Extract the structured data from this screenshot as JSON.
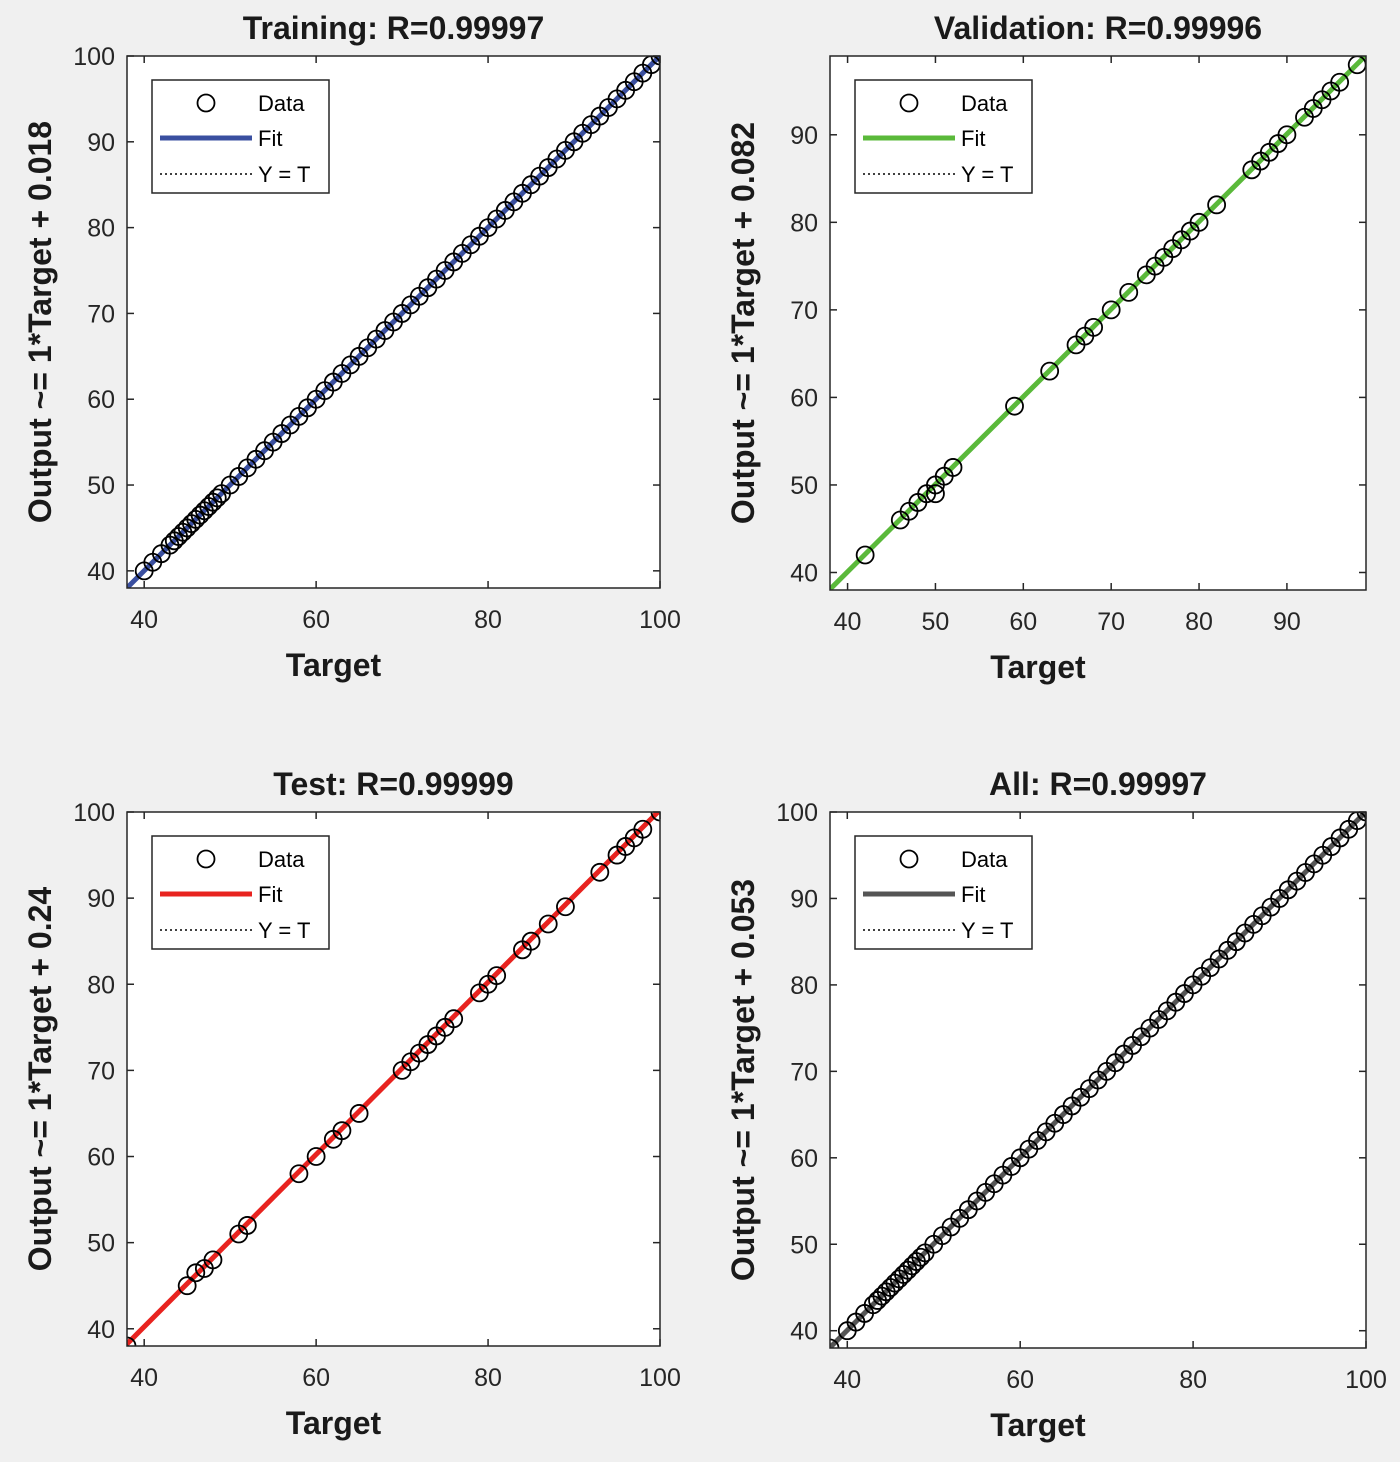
{
  "chart_data": [
    {
      "type": "scatter",
      "title": "Training: R=0.99997",
      "xlabel": "Target",
      "ylabel": "Output ~= 1*Target + 0.018",
      "xlim": [
        38,
        100
      ],
      "ylim": [
        38,
        100
      ],
      "xticks": [
        40,
        60,
        80,
        100
      ],
      "yticks": [
        40,
        50,
        60,
        70,
        80,
        90,
        100
      ],
      "fit": {
        "slope": 1,
        "intercept": 0.018,
        "color": "#3a4fa0"
      },
      "legend": {
        "position": "top-left",
        "entries": [
          "Data",
          "Fit",
          "Y = T"
        ]
      },
      "grid": false,
      "series": [
        {
          "name": "Data",
          "marker": "open-circle",
          "x": [
            40,
            41,
            42,
            43,
            43.5,
            44,
            44.5,
            45,
            45.5,
            46,
            46.5,
            47,
            47.5,
            48,
            48.5,
            49,
            50,
            51,
            52,
            53,
            54,
            55,
            56,
            57,
            58,
            59,
            60,
            61,
            62,
            63,
            64,
            65,
            66,
            67,
            68,
            69,
            70,
            71,
            72,
            73,
            74,
            75,
            76,
            77,
            78,
            79,
            80,
            81,
            82,
            83,
            84,
            85,
            86,
            87,
            88,
            89,
            90,
            91,
            92,
            93,
            94,
            95,
            96,
            97,
            98,
            99,
            100
          ],
          "y": [
            40,
            41,
            42,
            43,
            43.5,
            44,
            44.5,
            45,
            45.5,
            46,
            46.5,
            47,
            47.5,
            48,
            48.5,
            49,
            50,
            51,
            52,
            53,
            54,
            55,
            56,
            57,
            58,
            59,
            60,
            61,
            62,
            63,
            64,
            65,
            66,
            67,
            68,
            69,
            70,
            71,
            72,
            73,
            74,
            75,
            76,
            77,
            78,
            79,
            80,
            81,
            82,
            83,
            84,
            85,
            86,
            87,
            88,
            89,
            90,
            91,
            92,
            93,
            94,
            95,
            96,
            97,
            98,
            99,
            100
          ]
        },
        {
          "name": "Fit"
        },
        {
          "name": "Y = T"
        }
      ]
    },
    {
      "type": "scatter",
      "title": "Validation: R=0.99996",
      "xlabel": "Target",
      "ylabel": "Output ~= 1*Target + 0.082",
      "xlim": [
        38,
        99
      ],
      "ylim": [
        38,
        99
      ],
      "xticks": [
        40,
        50,
        60,
        70,
        80,
        90
      ],
      "yticks": [
        40,
        50,
        60,
        70,
        80,
        90
      ],
      "fit": {
        "slope": 1,
        "intercept": 0.082,
        "color": "#5ab93a"
      },
      "legend": {
        "position": "top-left",
        "entries": [
          "Data",
          "Fit",
          "Y = T"
        ]
      },
      "grid": false,
      "series": [
        {
          "name": "Data",
          "marker": "open-circle",
          "x": [
            42,
            46,
            47,
            48,
            49,
            50,
            50,
            51,
            52,
            59,
            63,
            66,
            67,
            68,
            70,
            72,
            74,
            75,
            76,
            77,
            78,
            79,
            80,
            82,
            86,
            87,
            88,
            89,
            90,
            92,
            93,
            94,
            95,
            96,
            98
          ],
          "y": [
            42,
            46,
            47,
            48,
            49,
            50,
            49,
            51,
            52,
            59,
            63,
            66,
            67,
            68,
            70,
            72,
            74,
            75,
            76,
            77,
            78,
            79,
            80,
            82,
            86,
            87,
            88,
            89,
            90,
            92,
            93,
            94,
            95,
            96,
            98
          ]
        },
        {
          "name": "Fit"
        },
        {
          "name": "Y = T"
        }
      ]
    },
    {
      "type": "scatter",
      "title": "Test: R=0.99999",
      "xlabel": "Target",
      "ylabel": "Output ~= 1*Target + 0.24",
      "xlim": [
        38,
        100
      ],
      "ylim": [
        38,
        100
      ],
      "xticks": [
        40,
        60,
        80,
        100
      ],
      "yticks": [
        40,
        50,
        60,
        70,
        80,
        90,
        100
      ],
      "fit": {
        "slope": 1,
        "intercept": 0.24,
        "color": "#e8231f"
      },
      "legend": {
        "position": "top-left",
        "entries": [
          "Data",
          "Fit",
          "Y = T"
        ]
      },
      "grid": false,
      "series": [
        {
          "name": "Data",
          "marker": "open-circle",
          "x": [
            38,
            45,
            46,
            47,
            48,
            51,
            52,
            58,
            60,
            62,
            63,
            65,
            70,
            71,
            72,
            73,
            74,
            75,
            76,
            79,
            80,
            81,
            84,
            85,
            87,
            89,
            93,
            95,
            96,
            97,
            98,
            100
          ],
          "y": [
            38,
            45,
            46.5,
            47,
            48,
            51,
            52,
            58,
            60,
            62,
            63,
            65,
            70,
            71,
            72,
            73,
            74,
            75,
            76,
            79,
            80,
            81,
            84,
            85,
            87,
            89,
            93,
            95,
            96,
            97,
            98,
            100
          ]
        },
        {
          "name": "Fit"
        },
        {
          "name": "Y = T"
        }
      ]
    },
    {
      "type": "scatter",
      "title": "All: R=0.99997",
      "xlabel": "Target",
      "ylabel": "Output ~= 1*Target + 0.053",
      "xlim": [
        38,
        100
      ],
      "ylim": [
        38,
        100
      ],
      "xticks": [
        40,
        60,
        80,
        100
      ],
      "yticks": [
        40,
        50,
        60,
        70,
        80,
        90,
        100
      ],
      "fit": {
        "slope": 1,
        "intercept": 0.053,
        "color": "#555555"
      },
      "legend": {
        "position": "top-left",
        "entries": [
          "Data",
          "Fit",
          "Y = T"
        ]
      },
      "grid": false,
      "series": [
        {
          "name": "Data",
          "marker": "open-circle",
          "x": [
            38,
            40,
            41,
            42,
            43,
            43.5,
            44,
            44.5,
            45,
            45.5,
            46,
            46.5,
            47,
            47.5,
            48,
            48.5,
            49,
            50,
            51,
            52,
            53,
            54,
            55,
            56,
            57,
            58,
            59,
            60,
            61,
            62,
            63,
            64,
            65,
            66,
            67,
            68,
            69,
            70,
            71,
            72,
            73,
            74,
            75,
            76,
            77,
            78,
            79,
            80,
            81,
            82,
            83,
            84,
            85,
            86,
            87,
            88,
            89,
            90,
            91,
            92,
            93,
            94,
            95,
            96,
            97,
            98,
            99,
            100
          ],
          "y": [
            38,
            40,
            41,
            42,
            43,
            43.5,
            44,
            44.5,
            45,
            45.5,
            46,
            46.5,
            47,
            47.5,
            48,
            48.5,
            49,
            50,
            51,
            52,
            53,
            54,
            55,
            56,
            57,
            58,
            59,
            60,
            61,
            62,
            63,
            64,
            65,
            66,
            67,
            68,
            69,
            70,
            71,
            72,
            73,
            74,
            75,
            76,
            77,
            78,
            79,
            80,
            81,
            82,
            83,
            84,
            85,
            86,
            87,
            88,
            89,
            90,
            91,
            92,
            93,
            94,
            95,
            96,
            97,
            98,
            99,
            100
          ]
        },
        {
          "name": "Fit"
        },
        {
          "name": "Y = T"
        }
      ]
    }
  ]
}
